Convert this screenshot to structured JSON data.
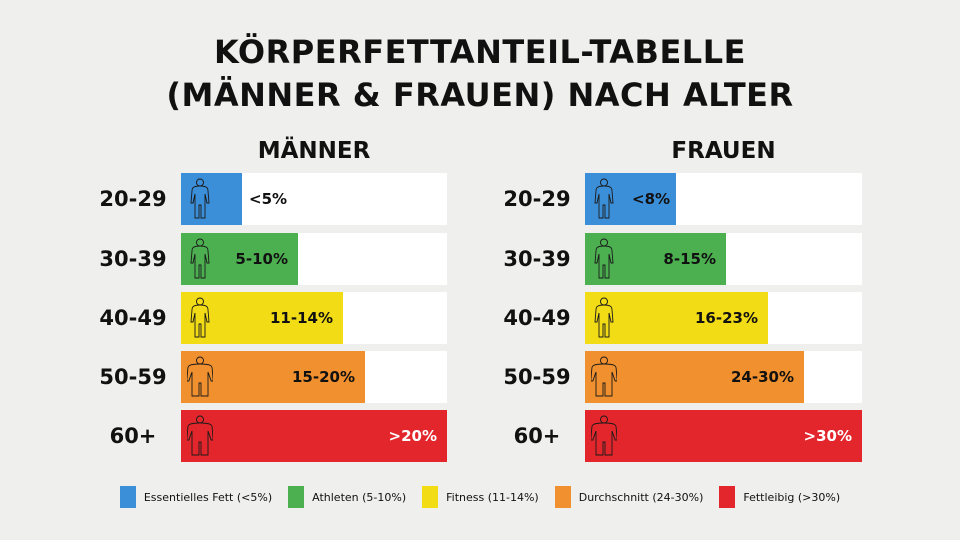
{
  "title": [
    "KÖRPERFETTANTEIL-TABELLE",
    "(MÄNNER & FRAUEN) NACH ALTER"
  ],
  "colors": {
    "essential": "#3b8fd9",
    "athletes": "#4caf50",
    "fitness": "#f2dc16",
    "average": "#f0902e",
    "obese": "#e3262c",
    "background": "#efefed"
  },
  "chart_data": {
    "type": "bar",
    "categories": [
      "20-29",
      "30-39",
      "40-49",
      "50-59",
      "60+"
    ],
    "series": [
      {
        "name": "MÄNNER",
        "labels": [
          "<5%",
          "5-10%",
          "11-14%",
          "15-20%",
          ">20%"
        ],
        "fill_fraction": [
          0.23,
          0.44,
          0.61,
          0.69,
          1.0
        ],
        "icon": [
          "slim-person-icon",
          "athletic-person-icon",
          "average-person-icon",
          "stocky-person-icon",
          "obese-person-icon"
        ]
      },
      {
        "name": "FRAUEN",
        "labels": [
          "<8%",
          "8-15%",
          "16-23%",
          "24-30%",
          ">30%"
        ],
        "fill_fraction": [
          0.33,
          0.51,
          0.66,
          0.79,
          1.0
        ],
        "icon": [
          "slim-person-icon",
          "athletic-person-icon",
          "average-person-icon",
          "stocky-person-icon",
          "obese-person-icon"
        ]
      }
    ],
    "row_colors": [
      "essential",
      "athletes",
      "fitness",
      "average",
      "obese"
    ],
    "legend": [
      {
        "label": "Essentielles Fett (<5%)",
        "color": "essential"
      },
      {
        "label": "Athleten (5-10%)",
        "color": "athletes"
      },
      {
        "label": "Fitness (11-14%)",
        "color": "fitness"
      },
      {
        "label": "Durchschnitt (24-30%)",
        "color": "average"
      },
      {
        "label": "Fettleibig (>30%)",
        "color": "obese"
      }
    ],
    "legend_placement": "bottom"
  }
}
